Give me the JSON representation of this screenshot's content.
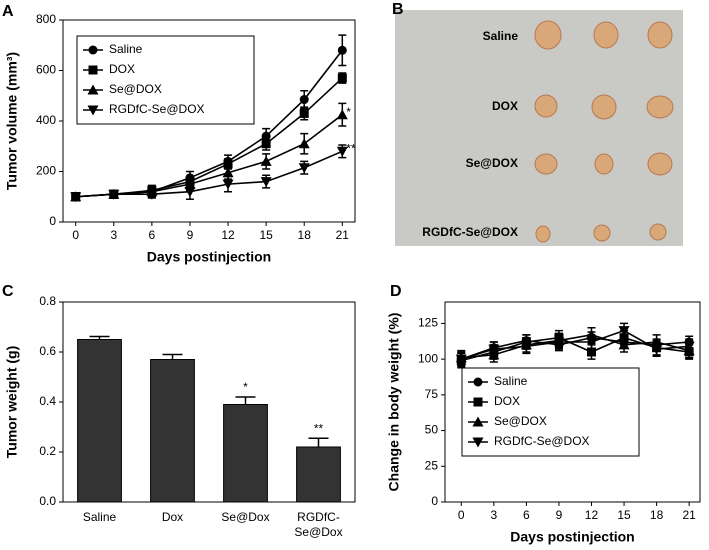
{
  "chart_data": [
    {
      "type": "line",
      "panel": "A",
      "xlabel": "Days postinjection",
      "ylabel": "Tumor volume (mm³)",
      "x": [
        0,
        3,
        6,
        9,
        12,
        15,
        18,
        21
      ],
      "xlim": [
        -1,
        22
      ],
      "xticks": [
        0,
        3,
        6,
        9,
        12,
        15,
        18,
        21
      ],
      "ylim": [
        0,
        800
      ],
      "yticks": [
        0,
        200,
        400,
        600,
        800
      ],
      "legend": "upper left",
      "series": [
        {
          "name": "Saline",
          "color": "#000000",
          "marker": "circle",
          "values": [
            100,
            110,
            120,
            175,
            240,
            340,
            485,
            680
          ],
          "errors": [
            15,
            15,
            20,
            25,
            25,
            30,
            35,
            60
          ]
        },
        {
          "name": "DOX",
          "color": "#000000",
          "marker": "square",
          "values": [
            100,
            110,
            125,
            160,
            230,
            310,
            430,
            570
          ],
          "errors": [
            15,
            15,
            20,
            20,
            20,
            25,
            25,
            20
          ]
        },
        {
          "name": "Se@DOX",
          "color": "#000000",
          "marker": "triangle-up",
          "values": [
            100,
            110,
            120,
            150,
            195,
            240,
            310,
            425
          ],
          "errors": [
            15,
            15,
            20,
            25,
            25,
            30,
            40,
            45
          ]
        },
        {
          "name": "RGDfC-Se@DOX",
          "color": "#000000",
          "marker": "triangle-down",
          "values": [
            100,
            110,
            110,
            120,
            150,
            160,
            215,
            280
          ],
          "errors": [
            15,
            15,
            15,
            30,
            30,
            25,
            25,
            25
          ]
        }
      ],
      "significance": [
        null,
        null,
        "*",
        "**"
      ]
    },
    {
      "type": "bar",
      "panel": "C",
      "ylabel": "Tumor weight (g)",
      "categories": [
        "Saline",
        "Dox",
        "Se@Dox",
        "RGDfC-Se@Dox"
      ],
      "values": [
        0.65,
        0.57,
        0.39,
        0.22
      ],
      "errors": [
        0.012,
        0.02,
        0.03,
        0.035
      ],
      "color": "#333333",
      "significance": [
        null,
        null,
        "*",
        "**"
      ],
      "ylim": [
        0,
        0.8
      ],
      "yticks": [
        {
          "value": 0,
          "label": "0.0"
        },
        0.2,
        0.4,
        0.6,
        0.8
      ]
    },
    {
      "type": "line",
      "panel": "D",
      "xlabel": "Days postinjection",
      "ylabel": "Change in body weight (%)",
      "x": [
        0,
        3,
        6,
        9,
        12,
        15,
        18,
        21
      ],
      "xlim": [
        -1.5,
        22
      ],
      "xticks": [
        0,
        3,
        6,
        9,
        12,
        15,
        18,
        21
      ],
      "ylim": [
        0,
        140
      ],
      "yticks": [
        0,
        25,
        50,
        75,
        100,
        125
      ],
      "legend": "center left",
      "series": [
        {
          "name": "Saline",
          "color": "#000000",
          "marker": "circle",
          "values": [
            100,
            108,
            113,
            110,
            115,
            112,
            110,
            112
          ],
          "errors": [
            4,
            4,
            4,
            4,
            4,
            4,
            4,
            4
          ]
        },
        {
          "name": "DOX",
          "color": "#000000",
          "marker": "square",
          "values": [
            99,
            105,
            112,
            115,
            105,
            115,
            108,
            105
          ],
          "errors": [
            5,
            5,
            5,
            5,
            5,
            5,
            5,
            5
          ]
        },
        {
          "name": "Se@DOX",
          "color": "#000000",
          "marker": "triangle-up",
          "values": [
            101,
            103,
            110,
            113,
            117,
            110,
            112,
            106
          ],
          "errors": [
            5,
            5,
            5,
            5,
            5,
            5,
            5,
            5
          ]
        },
        {
          "name": "RGDfC-Se@DOX",
          "color": "#000000",
          "marker": "triangle-down",
          "values": [
            100,
            107,
            109,
            112,
            112,
            120,
            107,
            109
          ],
          "errors": [
            5,
            5,
            5,
            5,
            5,
            5,
            5,
            5
          ]
        }
      ]
    }
  ],
  "photo": {
    "panel": "B",
    "rows": [
      "Saline",
      "DOX",
      "Se@DOX",
      "RGDfC-Se@DOX"
    ]
  }
}
